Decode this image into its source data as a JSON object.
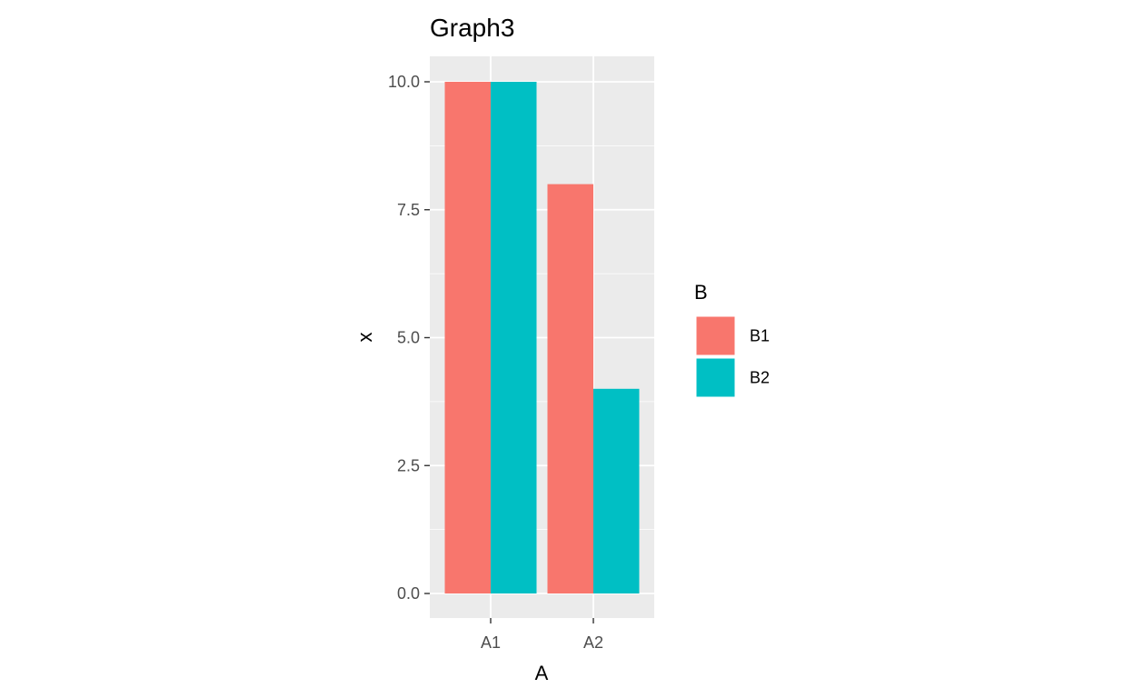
{
  "chart_data": {
    "type": "bar",
    "title": "Graph3",
    "xlabel": "A",
    "ylabel": "x",
    "categories": [
      "A1",
      "A2"
    ],
    "series": [
      {
        "name": "B1",
        "values": [
          10,
          8
        ],
        "color": "#F8766D"
      },
      {
        "name": "B2",
        "values": [
          10,
          4
        ],
        "color": "#00BFC4"
      }
    ],
    "ylim": [
      0,
      10
    ],
    "y_ticks": [
      "0.0",
      "2.5",
      "5.0",
      "7.5",
      "10.0"
    ],
    "grid": true,
    "legend": {
      "title": "B",
      "placement": "right"
    },
    "panel_background": "#EBEBEB",
    "grid_color": "#FFFFFF"
  }
}
